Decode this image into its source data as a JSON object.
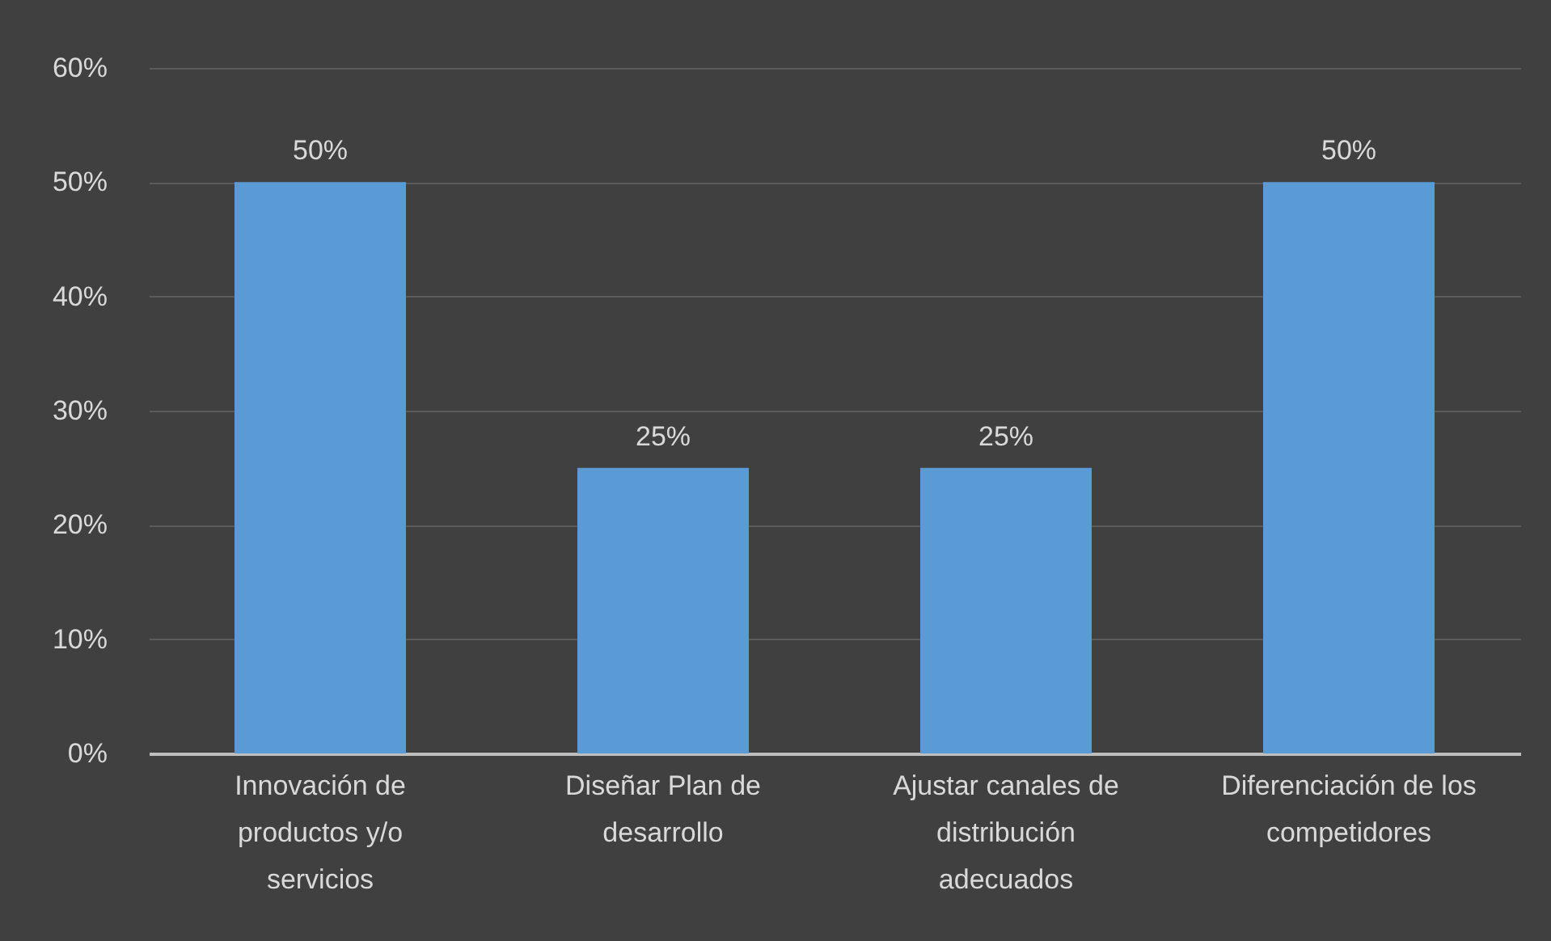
{
  "chart_data": {
    "type": "bar",
    "categories": [
      "Innovación de productos y/o servicios",
      "Diseñar Plan de desarrollo",
      "Ajustar canales de distribución adecuados",
      "Diferenciación de los competidores"
    ],
    "values": [
      50,
      25,
      25,
      50
    ],
    "value_labels": [
      "50%",
      "25%",
      "25%",
      "50%"
    ],
    "color": "#5b9bd5",
    "ylim": [
      0,
      60
    ],
    "yticks": [
      {
        "value": 0,
        "label": "0%"
      },
      {
        "value": 10,
        "label": "10%"
      },
      {
        "value": 20,
        "label": "20%"
      },
      {
        "value": 30,
        "label": "30%"
      },
      {
        "value": 40,
        "label": "40%"
      },
      {
        "value": 50,
        "label": "50%"
      },
      {
        "value": 60,
        "label": "60%"
      }
    ],
    "grid": "y"
  }
}
